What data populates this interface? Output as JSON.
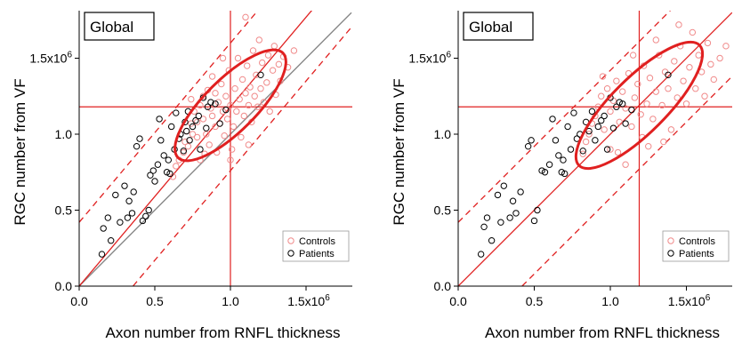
{
  "chart_data": [
    {
      "type": "scatter",
      "title": "Global",
      "xlabel": "Axon number from RNFL thickness",
      "ylabel": "RGC number from VF",
      "xlim": [
        0,
        1.8
      ],
      "ylim": [
        0,
        1.8
      ],
      "x_ticks": [
        {
          "v": 0,
          "label": "0.0"
        },
        {
          "v": 0.5,
          "label": "0.5"
        },
        {
          "v": 1.0,
          "label": "1.0"
        },
        {
          "v": 1.5,
          "label": "1.5x10",
          "sup": "6"
        }
      ],
      "y_ticks": [
        {
          "v": 0,
          "label": "0.0"
        },
        {
          "v": 0.5,
          "label": "0.5"
        },
        {
          "v": 1.0,
          "label": "1.0"
        },
        {
          "v": 1.5,
          "label": "1.5x10",
          "sup": "6"
        }
      ],
      "legend": {
        "position": "bottom-right",
        "entries": [
          {
            "name": "Controls",
            "color": "#f08a8a"
          },
          {
            "name": "Patients",
            "color": "#000000"
          }
        ]
      },
      "reference_lines": {
        "vline_x": 1.0,
        "hline_y": 1.18,
        "fit_slope": 1.18,
        "band_offset": 0.42,
        "identity_line": true
      },
      "ellipse": {
        "center": [
          1.0,
          1.19
        ],
        "angle_deg": 45,
        "semi_axes": [
          0.49,
          0.17
        ]
      },
      "series": [
        {
          "name": "Controls",
          "color": "#f08a8a",
          "points": [
            [
              0.62,
              0.72
            ],
            [
              0.64,
              0.79
            ],
            [
              0.66,
              0.83
            ],
            [
              0.69,
              0.88
            ],
            [
              0.7,
              0.95
            ],
            [
              0.71,
              1.02
            ],
            [
              0.72,
              0.92
            ],
            [
              0.74,
              1.07
            ],
            [
              0.75,
              1.0
            ],
            [
              0.76,
              1.15
            ],
            [
              0.78,
              0.98
            ],
            [
              0.78,
              1.08
            ],
            [
              0.8,
              0.83
            ],
            [
              0.8,
              1.19
            ],
            [
              0.82,
              1.25
            ],
            [
              0.82,
              1.1
            ],
            [
              0.84,
              1.0
            ],
            [
              0.85,
              1.29
            ],
            [
              0.86,
              0.93
            ],
            [
              0.87,
              1.17
            ],
            [
              0.88,
              1.12
            ],
            [
              0.88,
              1.38
            ],
            [
              0.9,
              1.05
            ],
            [
              0.9,
              1.27
            ],
            [
              0.91,
              0.88
            ],
            [
              0.92,
              1.21
            ],
            [
              0.93,
              1.07
            ],
            [
              0.94,
              1.33
            ],
            [
              0.95,
              1.15
            ],
            [
              0.96,
              0.99
            ],
            [
              0.97,
              1.25
            ],
            [
              0.98,
              1.1
            ],
            [
              0.99,
              1.42
            ],
            [
              1.0,
              1.19
            ],
            [
              1.01,
              0.9
            ],
            [
              1.02,
              1.05
            ],
            [
              1.03,
              1.3
            ],
            [
              1.04,
              1.15
            ],
            [
              1.05,
              1.5
            ],
            [
              1.06,
              1.23
            ],
            [
              1.07,
              0.98
            ],
            [
              1.08,
              1.36
            ],
            [
              1.09,
              1.12
            ],
            [
              1.1,
              1.27
            ],
            [
              1.11,
              1.45
            ],
            [
              1.12,
              1.19
            ],
            [
              1.13,
              1.31
            ],
            [
              1.14,
              1.08
            ],
            [
              1.15,
              1.55
            ],
            [
              1.16,
              1.25
            ],
            [
              1.17,
              1.39
            ],
            [
              1.18,
              1.18
            ],
            [
              1.19,
              1.62
            ],
            [
              1.2,
              1.3
            ],
            [
              1.21,
              1.47
            ],
            [
              1.22,
              1.21
            ],
            [
              1.24,
              1.34
            ],
            [
              1.25,
              1.52
            ],
            [
              1.26,
              1.15
            ],
            [
              1.28,
              1.42
            ],
            [
              1.29,
              1.58
            ],
            [
              1.3,
              1.26
            ],
            [
              1.32,
              1.46
            ],
            [
              1.33,
              1.35
            ],
            [
              1.35,
              1.51
            ],
            [
              1.38,
              1.44
            ],
            [
              1.42,
              1.55
            ],
            [
              1.1,
              1.77
            ],
            [
              0.95,
              1.5
            ],
            [
              0.74,
              1.23
            ],
            [
              0.83,
              0.87
            ],
            [
              1.0,
              0.83
            ],
            [
              1.12,
              0.93
            ]
          ]
        },
        {
          "name": "Patients",
          "color": "#000000",
          "points": [
            [
              0.15,
              0.21
            ],
            [
              0.16,
              0.38
            ],
            [
              0.19,
              0.45
            ],
            [
              0.21,
              0.3
            ],
            [
              0.24,
              0.6
            ],
            [
              0.27,
              0.42
            ],
            [
              0.3,
              0.66
            ],
            [
              0.32,
              0.45
            ],
            [
              0.33,
              0.56
            ],
            [
              0.35,
              0.48
            ],
            [
              0.36,
              0.62
            ],
            [
              0.38,
              0.92
            ],
            [
              0.4,
              0.97
            ],
            [
              0.42,
              0.43
            ],
            [
              0.44,
              0.46
            ],
            [
              0.46,
              0.5
            ],
            [
              0.47,
              0.73
            ],
            [
              0.49,
              0.76
            ],
            [
              0.5,
              0.69
            ],
            [
              0.52,
              0.8
            ],
            [
              0.53,
              1.1
            ],
            [
              0.54,
              0.96
            ],
            [
              0.56,
              0.86
            ],
            [
              0.58,
              0.75
            ],
            [
              0.59,
              0.83
            ],
            [
              0.6,
              0.74
            ],
            [
              0.61,
              1.05
            ],
            [
              0.63,
              0.9
            ],
            [
              0.64,
              1.14
            ],
            [
              0.66,
              0.97
            ],
            [
              0.67,
              1.0
            ],
            [
              0.69,
              0.89
            ],
            [
              0.7,
              1.08
            ],
            [
              0.71,
              1.02
            ],
            [
              0.72,
              1.15
            ],
            [
              0.73,
              0.96
            ],
            [
              0.75,
              1.05
            ],
            [
              0.77,
              1.09
            ],
            [
              0.79,
              1.12
            ],
            [
              0.8,
              0.9
            ],
            [
              0.82,
              1.24
            ],
            [
              0.84,
              1.04
            ],
            [
              0.85,
              1.18
            ],
            [
              0.87,
              1.21
            ],
            [
              0.9,
              1.2
            ],
            [
              0.93,
              1.07
            ],
            [
              0.97,
              1.16
            ],
            [
              1.2,
              1.39
            ]
          ]
        }
      ]
    },
    {
      "type": "scatter",
      "title": "Global",
      "xlabel": "Axon number from RNFL thickness",
      "ylabel": "RGC number from VF",
      "xlim": [
        0,
        1.8
      ],
      "ylim": [
        0,
        1.8
      ],
      "x_ticks": [
        {
          "v": 0,
          "label": "0.0"
        },
        {
          "v": 0.5,
          "label": "0.5"
        },
        {
          "v": 1.0,
          "label": "1.0"
        },
        {
          "v": 1.5,
          "label": "1.5x10",
          "sup": "6"
        }
      ],
      "y_ticks": [
        {
          "v": 0,
          "label": "0.0"
        },
        {
          "v": 0.5,
          "label": "0.5"
        },
        {
          "v": 1.0,
          "label": "1.0"
        },
        {
          "v": 1.5,
          "label": "1.5x10",
          "sup": "6"
        }
      ],
      "legend": {
        "position": "bottom-right",
        "entries": [
          {
            "name": "Controls",
            "color": "#f08a8a"
          },
          {
            "name": "Patients",
            "color": "#000000"
          }
        ]
      },
      "reference_lines": {
        "vline_x": 1.19,
        "hline_y": 1.18,
        "fit_slope": 1.0,
        "band_offset": 0.42,
        "identity_line": false
      },
      "ellipse": {
        "center": [
          1.19,
          1.19
        ],
        "angle_deg": 45,
        "semi_axes": [
          0.56,
          0.18
        ]
      },
      "series": [
        {
          "name": "Controls",
          "color": "#f08a8a",
          "points": [
            [
              0.82,
              0.87
            ],
            [
              0.84,
              0.95
            ],
            [
              0.86,
              1.0
            ],
            [
              0.88,
              1.07
            ],
            [
              0.9,
              1.12
            ],
            [
              0.92,
              1.18
            ],
            [
              0.94,
              1.25
            ],
            [
              0.96,
              1.03
            ],
            [
              0.98,
              1.3
            ],
            [
              1.0,
              1.15
            ],
            [
              1.0,
              0.9
            ],
            [
              1.02,
              1.22
            ],
            [
              1.04,
              1.35
            ],
            [
              1.06,
              1.08
            ],
            [
              1.08,
              1.28
            ],
            [
              1.1,
              1.17
            ],
            [
              1.1,
              0.8
            ],
            [
              1.12,
              1.4
            ],
            [
              1.14,
              1.05
            ],
            [
              1.16,
              1.24
            ],
            [
              1.18,
              1.33
            ],
            [
              1.2,
              1.13
            ],
            [
              1.21,
              0.98
            ],
            [
              1.22,
              1.45
            ],
            [
              1.24,
              1.2
            ],
            [
              1.26,
              1.37
            ],
            [
              1.28,
              1.1
            ],
            [
              1.3,
              1.28
            ],
            [
              1.32,
              1.52
            ],
            [
              1.34,
              1.19
            ],
            [
              1.36,
              1.41
            ],
            [
              1.38,
              1.3
            ],
            [
              1.4,
              1.03
            ],
            [
              1.42,
              1.48
            ],
            [
              1.44,
              1.24
            ],
            [
              1.46,
              1.58
            ],
            [
              1.48,
              1.35
            ],
            [
              1.5,
              1.2
            ],
            [
              1.52,
              1.44
            ],
            [
              1.54,
              1.67
            ],
            [
              1.56,
              1.3
            ],
            [
              1.58,
              1.52
            ],
            [
              1.6,
              1.41
            ],
            [
              1.62,
              1.25
            ],
            [
              1.64,
              1.6
            ],
            [
              1.66,
              1.46
            ],
            [
              1.68,
              1.36
            ],
            [
              1.72,
              1.5
            ],
            [
              1.76,
              1.58
            ],
            [
              1.45,
              1.72
            ],
            [
              1.3,
              1.62
            ],
            [
              0.95,
              1.38
            ],
            [
              1.05,
              0.88
            ],
            [
              1.25,
              0.92
            ],
            [
              1.15,
              1.52
            ],
            [
              1.35,
              0.95
            ]
          ]
        },
        {
          "name": "Patients",
          "color": "#000000",
          "points": [
            [
              0.15,
              0.21
            ],
            [
              0.17,
              0.39
            ],
            [
              0.19,
              0.45
            ],
            [
              0.22,
              0.3
            ],
            [
              0.26,
              0.6
            ],
            [
              0.28,
              0.42
            ],
            [
              0.3,
              0.66
            ],
            [
              0.34,
              0.45
            ],
            [
              0.36,
              0.56
            ],
            [
              0.38,
              0.48
            ],
            [
              0.41,
              0.62
            ],
            [
              0.46,
              0.92
            ],
            [
              0.48,
              0.96
            ],
            [
              0.5,
              0.43
            ],
            [
              0.52,
              0.5
            ],
            [
              0.55,
              0.76
            ],
            [
              0.57,
              0.75
            ],
            [
              0.6,
              0.8
            ],
            [
              0.62,
              1.1
            ],
            [
              0.64,
              0.96
            ],
            [
              0.66,
              0.86
            ],
            [
              0.68,
              0.75
            ],
            [
              0.69,
              0.83
            ],
            [
              0.7,
              0.74
            ],
            [
              0.72,
              1.05
            ],
            [
              0.74,
              0.9
            ],
            [
              0.76,
              1.14
            ],
            [
              0.78,
              0.97
            ],
            [
              0.8,
              1.0
            ],
            [
              0.82,
              0.89
            ],
            [
              0.84,
              1.08
            ],
            [
              0.86,
              1.02
            ],
            [
              0.88,
              1.15
            ],
            [
              0.9,
              0.96
            ],
            [
              0.92,
              1.05
            ],
            [
              0.94,
              1.09
            ],
            [
              0.96,
              1.12
            ],
            [
              0.98,
              0.9
            ],
            [
              1.0,
              1.24
            ],
            [
              1.02,
              1.04
            ],
            [
              1.04,
              1.18
            ],
            [
              1.06,
              1.21
            ],
            [
              1.08,
              1.2
            ],
            [
              1.1,
              1.07
            ],
            [
              1.14,
              1.16
            ],
            [
              1.38,
              1.39
            ]
          ]
        }
      ]
    }
  ]
}
